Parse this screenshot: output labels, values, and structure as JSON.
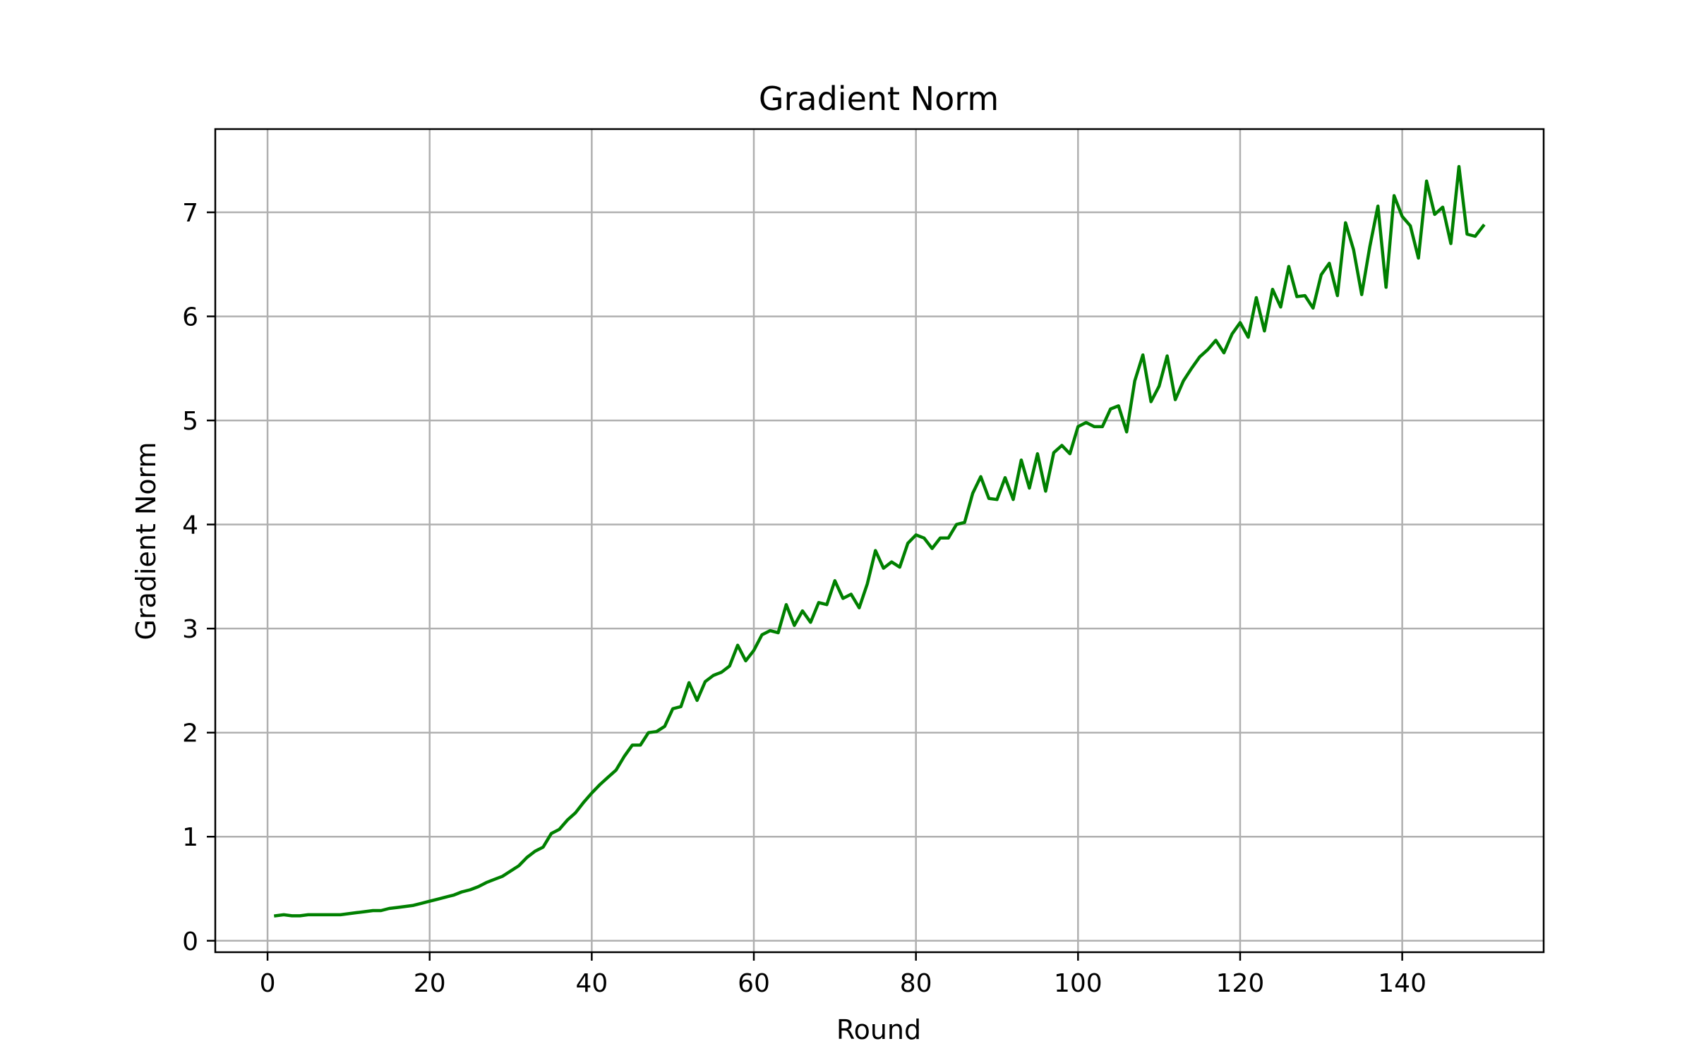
{
  "chart_data": {
    "type": "line",
    "title": "Gradient Norm",
    "xlabel": "Round",
    "ylabel": "Gradient Norm",
    "xlim": [
      -6.45,
      157.45
    ],
    "ylim": [
      -0.11,
      7.8
    ],
    "x_ticks": [
      0,
      20,
      40,
      60,
      80,
      100,
      120,
      140
    ],
    "y_ticks": [
      0,
      1,
      2,
      3,
      4,
      5,
      6,
      7
    ],
    "grid": true,
    "line_color": "#008000",
    "series": [
      {
        "x": [
          1,
          2,
          3,
          4,
          5,
          6,
          7,
          8,
          9,
          10,
          11,
          12,
          13,
          14,
          15,
          16,
          17,
          18,
          19,
          20,
          21,
          22,
          23,
          24,
          25,
          26,
          27,
          28,
          29,
          30,
          31,
          32,
          33,
          34,
          35,
          36,
          37,
          38,
          39,
          40,
          41,
          42,
          43,
          44,
          45,
          46,
          47,
          48,
          49,
          50,
          51,
          52,
          53,
          54,
          55,
          56,
          57,
          58,
          59,
          60,
          61,
          62,
          63,
          64,
          65,
          66,
          67,
          68,
          69,
          70,
          71,
          72,
          73,
          74,
          75,
          76,
          77,
          78,
          79,
          80,
          81,
          82,
          83,
          84,
          85,
          86,
          87,
          88,
          89,
          90,
          91,
          92,
          93,
          94,
          95,
          96,
          97,
          98,
          99,
          100,
          101,
          102,
          103,
          104,
          105,
          106,
          107,
          108,
          109,
          110,
          111,
          112,
          113,
          114,
          115,
          116,
          117,
          118,
          119,
          120,
          121,
          122,
          123,
          124,
          125,
          126,
          127,
          128,
          129,
          130,
          131,
          132,
          133,
          134,
          135,
          136,
          137,
          138,
          139,
          140,
          141,
          142,
          143,
          144,
          145,
          146,
          147,
          148,
          149,
          150
        ],
        "values": [
          0.24,
          0.25,
          0.24,
          0.24,
          0.25,
          0.25,
          0.25,
          0.25,
          0.25,
          0.26,
          0.27,
          0.28,
          0.29,
          0.29,
          0.31,
          0.32,
          0.33,
          0.34,
          0.36,
          0.38,
          0.4,
          0.42,
          0.44,
          0.47,
          0.49,
          0.52,
          0.56,
          0.59,
          0.62,
          0.67,
          0.72,
          0.8,
          0.86,
          0.9,
          1.03,
          1.07,
          1.16,
          1.23,
          1.33,
          1.42,
          1.5,
          1.57,
          1.64,
          1.77,
          1.88,
          1.88,
          2.0,
          2.01,
          2.06,
          2.23,
          2.25,
          2.48,
          2.31,
          2.49,
          2.55,
          2.58,
          2.64,
          2.84,
          2.69,
          2.79,
          2.94,
          2.98,
          2.96,
          3.23,
          3.03,
          3.17,
          3.06,
          3.25,
          3.23,
          3.46,
          3.29,
          3.33,
          3.2,
          3.43,
          3.75,
          3.58,
          3.64,
          3.59,
          3.82,
          3.9,
          3.87,
          3.77,
          3.87,
          3.87,
          4.0,
          4.02,
          4.3,
          4.46,
          4.25,
          4.24,
          4.45,
          4.24,
          4.62,
          4.35,
          4.68,
          4.32,
          4.69,
          4.76,
          4.68,
          4.94,
          4.98,
          4.94,
          4.94,
          5.11,
          5.14,
          4.89,
          5.38,
          5.63,
          5.18,
          5.33,
          5.62,
          5.2,
          5.38,
          5.5,
          5.61,
          5.68,
          5.77,
          5.65,
          5.83,
          5.94,
          5.8,
          6.18,
          5.86,
          6.26,
          6.09,
          6.48,
          6.19,
          6.2,
          6.08,
          6.4,
          6.51,
          6.2,
          6.9,
          6.64,
          6.21,
          6.67,
          7.06,
          6.28,
          7.16,
          6.96,
          6.87,
          6.56,
          7.3,
          6.98,
          7.05,
          6.7,
          7.44,
          6.79,
          6.77,
          6.87
        ]
      }
    ]
  }
}
